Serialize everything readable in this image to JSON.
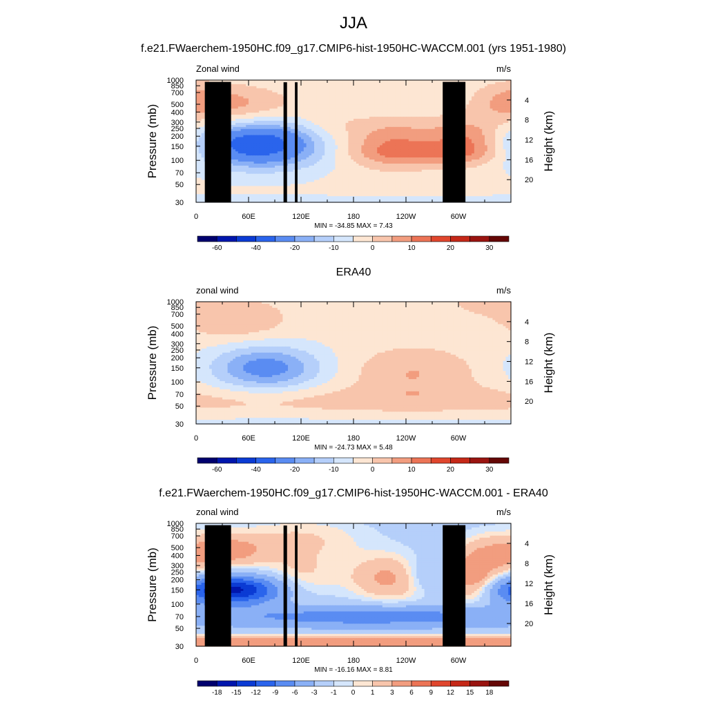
{
  "page": {
    "title": "JJA",
    "subtitles": [
      "f.e21.FWaerchem-1950HC.f09_g17.CMIP6-hist-1950HC-WACCM.001 (yrs 1951-1980)",
      "ERA40",
      "f.e21.FWaerchem-1950HC.f09_g17.CMIP6-hist-1950HC-WACCM.001 - ERA40"
    ]
  },
  "colors": {
    "palette": [
      "#00006e",
      "#0016ad",
      "#0b3bd4",
      "#2a64ec",
      "#5a8cf2",
      "#8ab0f6",
      "#b5cffa",
      "#d5e6fc",
      "#fde6d3",
      "#f8c5ac",
      "#f29d7f",
      "#ec7456",
      "#e0462d",
      "#c52818",
      "#9a1410",
      "#650705"
    ]
  },
  "chart_data": [
    {
      "type": "heatmap",
      "panel": "model",
      "left_label": "Zonal wind",
      "right_label": "m/s",
      "ylabel": "Pressure (mb)",
      "ylabel_right": "Height (km)",
      "y_ticks": [
        30,
        50,
        70,
        100,
        150,
        200,
        250,
        300,
        400,
        500,
        700,
        850,
        1000
      ],
      "y_right_ticks": [
        20,
        16,
        12,
        8,
        4
      ],
      "x_ticks": [
        "0",
        "60E",
        "120E",
        "180",
        "120W",
        "60W"
      ],
      "x_tick_values": [
        0,
        60,
        120,
        180,
        240,
        300
      ],
      "xlim": [
        0,
        360
      ],
      "ylim": [
        1000,
        30
      ],
      "y_scale": "log",
      "stats": "MIN = -34.85  MAX =   7.43",
      "min": -34.85,
      "max": 7.43,
      "levels": [
        -60,
        -50,
        -40,
        -30,
        -20,
        -15,
        -10,
        -5,
        0,
        5,
        10,
        15,
        20,
        25,
        30
      ],
      "colorbar_labels": [
        "-60",
        "-40",
        "-20",
        "-10",
        "0",
        "10",
        "20",
        "30"
      ],
      "colorbar_label_index": [
        1,
        3,
        5,
        7,
        9,
        11,
        13,
        15
      ],
      "base": -4,
      "features": [
        {
          "lon": 310,
          "p": 30,
          "dlon": 600,
          "dlogp": 0.06,
          "amp": -3
        },
        {
          "lon": 75,
          "p": 155,
          "dlon": 50,
          "dlogp": 0.2,
          "amp": -28
        },
        {
          "lon": 65,
          "p": 160,
          "dlon": 26,
          "dlogp": 0.11,
          "amp": -8
        },
        {
          "lon": 225,
          "p": 160,
          "dlon": 40,
          "dlogp": 0.22,
          "amp": 14
        },
        {
          "lon": 310,
          "p": 170,
          "dlon": 30,
          "dlogp": 0.2,
          "amp": 14
        },
        {
          "lon": 265,
          "p": 120,
          "dlon": 55,
          "dlogp": 0.08,
          "amp": 6
        },
        {
          "lon": 45,
          "p": 500,
          "dlon": 45,
          "dlogp": 0.17,
          "amp": 10
        },
        {
          "lon": 355,
          "p": 550,
          "dlon": 28,
          "dlogp": 0.18,
          "amp": 7
        },
        {
          "lon": 150,
          "p": 300,
          "dlon": 25,
          "dlogp": 0.2,
          "amp": 4
        }
      ],
      "topography": [
        {
          "lon0": 10,
          "lon1": 40,
          "p": 950
        },
        {
          "lon0": 28,
          "lon1": 34,
          "p": 880
        },
        {
          "lon0": 100,
          "lon1": 104,
          "p": 940
        },
        {
          "lon0": 113,
          "lon1": 116,
          "p": 940
        },
        {
          "lon0": 282,
          "lon1": 308,
          "p": 950
        }
      ]
    },
    {
      "type": "heatmap",
      "panel": "obs",
      "left_label": "zonal wind",
      "right_label": "m/s",
      "ylabel": "Pressure (mb)",
      "ylabel_right": "Height (km)",
      "y_ticks": [
        30,
        50,
        70,
        100,
        150,
        200,
        250,
        300,
        400,
        500,
        700,
        850,
        1000
      ],
      "y_right_ticks": [
        20,
        16,
        12,
        8,
        4
      ],
      "x_ticks": [
        "0",
        "60E",
        "120E",
        "180",
        "120W",
        "60W"
      ],
      "x_tick_values": [
        0,
        60,
        120,
        180,
        240,
        300
      ],
      "xlim": [
        0,
        360
      ],
      "ylim": [
        1000,
        30
      ],
      "y_scale": "log",
      "stats": "MIN = -24.73  MAX =   5.48",
      "min": -24.73,
      "max": 5.48,
      "levels": [
        -60,
        -50,
        -40,
        -30,
        -20,
        -15,
        -10,
        -5,
        0,
        5,
        10,
        15,
        20,
        25,
        30
      ],
      "colorbar_labels": [
        "-60",
        "-40",
        "-20",
        "-10",
        "0",
        "10",
        "20",
        "30"
      ],
      "colorbar_label_index": [
        1,
        3,
        5,
        7,
        9,
        11,
        13,
        15
      ],
      "base": -3,
      "features": [
        {
          "lon": 180,
          "p": 30,
          "dlon": 600,
          "dlogp": 0.07,
          "amp": -4
        },
        {
          "lon": 200,
          "p": 60,
          "dlon": 600,
          "dlogp": 0.12,
          "amp": 5
        },
        {
          "lon": 80,
          "p": 150,
          "dlon": 45,
          "dlogp": 0.2,
          "amp": -20
        },
        {
          "lon": 248,
          "p": 130,
          "dlon": 50,
          "dlogp": 0.22,
          "amp": 8
        },
        {
          "lon": 45,
          "p": 600,
          "dlon": 40,
          "dlogp": 0.18,
          "amp": 8
        },
        {
          "lon": 330,
          "p": 1000,
          "dlon": 30,
          "dlogp": 0.12,
          "amp": 5
        }
      ],
      "topography": []
    },
    {
      "type": "heatmap",
      "panel": "diff",
      "left_label": "zonal wind",
      "right_label": "m/s",
      "ylabel": "Pressure (mb)",
      "ylabel_right": "Height (km)",
      "y_ticks": [
        30,
        50,
        70,
        100,
        150,
        200,
        250,
        300,
        400,
        500,
        700,
        850,
        1000
      ],
      "y_right_ticks": [
        20,
        16,
        12,
        8,
        4
      ],
      "x_ticks": [
        "0",
        "60E",
        "120E",
        "180",
        "120W",
        "60W"
      ],
      "x_tick_values": [
        0,
        60,
        120,
        180,
        240,
        300
      ],
      "xlim": [
        0,
        360
      ],
      "ylim": [
        1000,
        30
      ],
      "y_scale": "log",
      "stats": "MIN = -16.16  MAX =   8.81",
      "min": -16.16,
      "max": 8.81,
      "levels": [
        -18,
        -15,
        -12,
        -9,
        -6,
        -3,
        -1,
        0,
        1,
        3,
        6,
        9,
        12,
        15,
        18
      ],
      "colorbar_labels": [
        "-18",
        "-15",
        "-12",
        "-9",
        "-6",
        "-3",
        "-1",
        "0",
        "1",
        "3",
        "6",
        "9",
        "12",
        "15",
        "18"
      ],
      "colorbar_label_index": [
        1,
        2,
        3,
        4,
        5,
        6,
        7,
        8,
        9,
        10,
        11,
        12,
        13,
        14,
        15
      ],
      "base": -2,
      "features": [
        {
          "lon": 180,
          "p": 32,
          "dlon": 600,
          "dlogp": 0.07,
          "amp": 8
        },
        {
          "lon": 200,
          "p": 70,
          "dlon": 130,
          "dlogp": 0.09,
          "amp": -6
        },
        {
          "lon": 40,
          "p": 150,
          "dlon": 40,
          "dlogp": 0.12,
          "amp": -14
        },
        {
          "lon": 225,
          "p": 210,
          "dlon": 35,
          "dlogp": 0.2,
          "amp": 6
        },
        {
          "lon": 315,
          "p": 200,
          "dlon": 18,
          "dlogp": 0.2,
          "amp": 6
        },
        {
          "lon": 120,
          "p": 220,
          "dlon": 30,
          "dlogp": 0.22,
          "amp": 3
        },
        {
          "lon": 265,
          "p": 230,
          "dlon": 22,
          "dlogp": 0.15,
          "amp": -4
        },
        {
          "lon": 40,
          "p": 450,
          "dlon": 30,
          "dlogp": 0.15,
          "amp": 5
        },
        {
          "lon": 340,
          "p": 400,
          "dlon": 30,
          "dlogp": 0.2,
          "amp": 5
        },
        {
          "lon": 120,
          "p": 650,
          "dlon": 60,
          "dlogp": 0.2,
          "amp": 3
        }
      ],
      "topography": [
        {
          "lon0": 10,
          "lon1": 40,
          "p": 950
        },
        {
          "lon0": 28,
          "lon1": 34,
          "p": 880
        },
        {
          "lon0": 100,
          "lon1": 104,
          "p": 940
        },
        {
          "lon0": 113,
          "lon1": 116,
          "p": 940
        },
        {
          "lon0": 282,
          "lon1": 308,
          "p": 950
        }
      ]
    }
  ]
}
